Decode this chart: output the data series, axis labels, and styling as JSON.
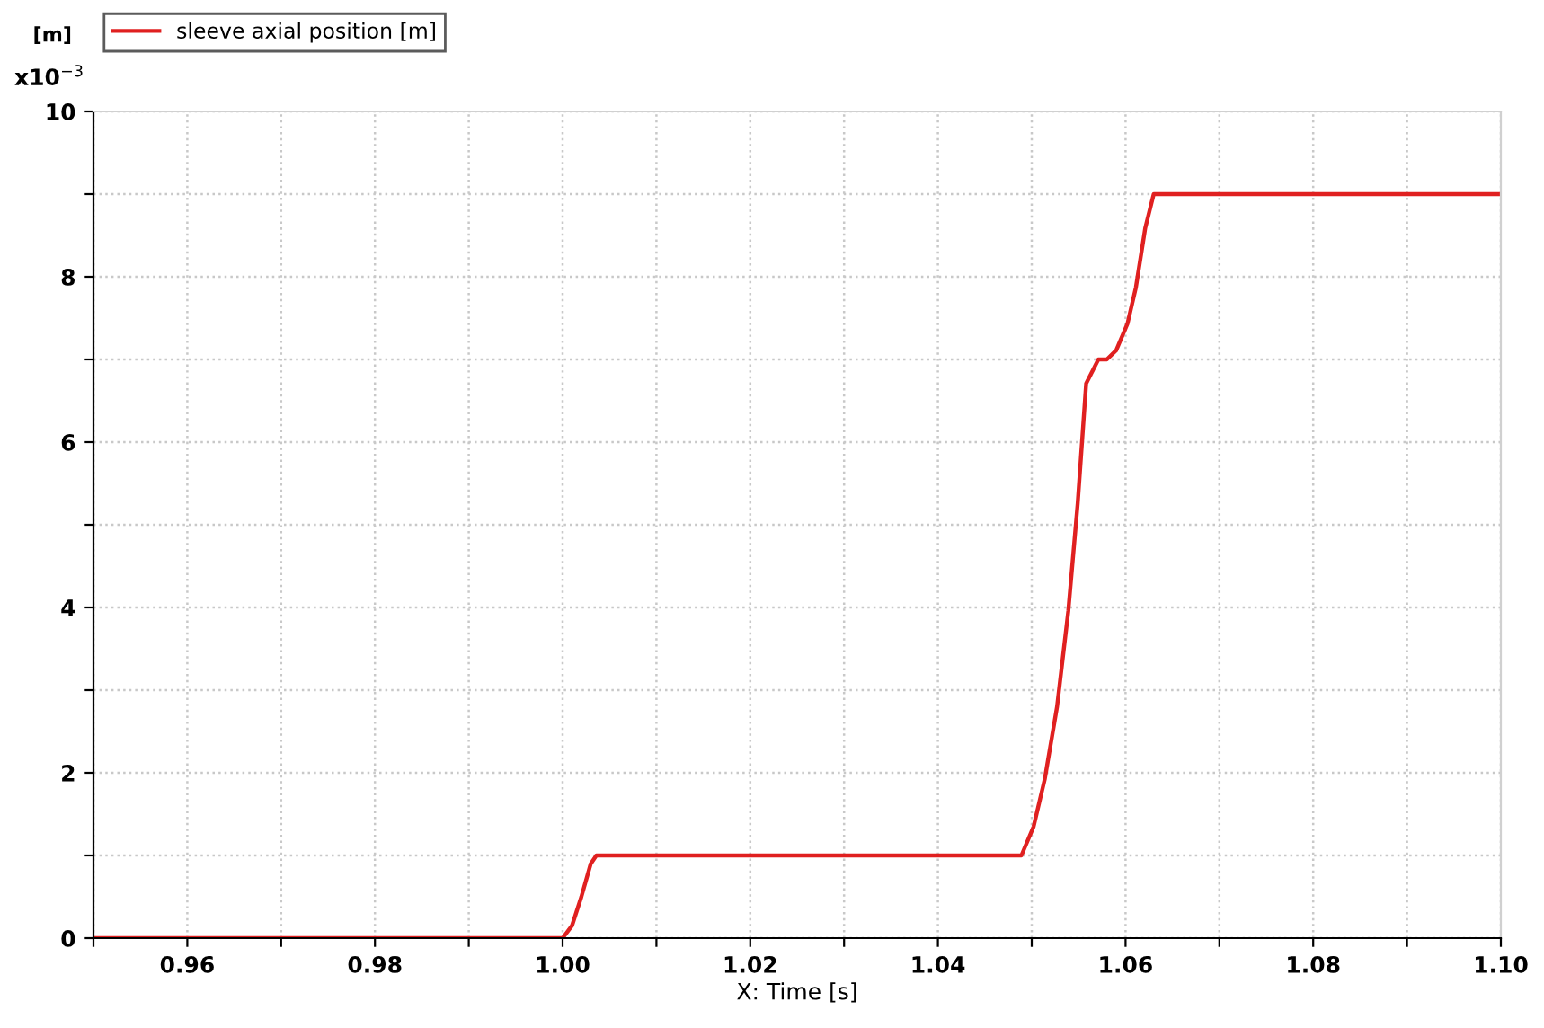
{
  "chart_data": {
    "type": "line",
    "xlabel": "X: Time [s]",
    "ylabel": "[m]",
    "annotations": [
      "x10$^{−3}$"
    ],
    "series": [
      {
        "name": "sleeve axial position [m]",
        "color": "#e02020",
        "x": [
          0.95,
          1.0,
          1.001,
          1.002,
          1.003,
          1.0036,
          1.0489,
          1.0502,
          1.0514,
          1.0527,
          1.0539,
          1.0549,
          1.0558,
          1.0571,
          1.058,
          1.059,
          1.0602,
          1.0611,
          1.0621,
          1.063,
          1.1
        ],
        "values": [
          0,
          0,
          0.15,
          0.5,
          0.9,
          1.0,
          1.0,
          1.35,
          1.93,
          2.8,
          3.96,
          5.26,
          6.71,
          7.0,
          7.0,
          7.11,
          7.43,
          7.87,
          8.59,
          9.0,
          9.0
        ]
      }
    ],
    "xlim": [
      0.95,
      1.1
    ],
    "ylim": [
      0,
      10
    ],
    "xticks": [
      {
        "value": 0.95,
        "label": null
      },
      0.96,
      {
        "value": 0.97,
        "label": null
      },
      0.98,
      {
        "value": 0.99,
        "label": null
      },
      {
        "value": 1.0,
        "label": "1.00"
      },
      {
        "value": 1.01,
        "label": null
      },
      1.02,
      {
        "value": 1.03,
        "label": null
      },
      1.04,
      {
        "value": 1.05,
        "label": null
      },
      1.06,
      {
        "value": 1.07,
        "label": null
      },
      1.08,
      {
        "value": 1.09,
        "label": null
      },
      {
        "value": 1.1,
        "label": "1.10"
      }
    ],
    "yticks": [
      0,
      {
        "value": 1,
        "label": null
      },
      2,
      {
        "value": 3,
        "label": null
      },
      4,
      {
        "value": 5,
        "label": null
      },
      6,
      {
        "value": 7,
        "label": null
      },
      8,
      {
        "value": 9,
        "label": null
      },
      10
    ],
    "grid": true,
    "legend": "top left",
    "line_style": "solid",
    "marker": "none"
  }
}
